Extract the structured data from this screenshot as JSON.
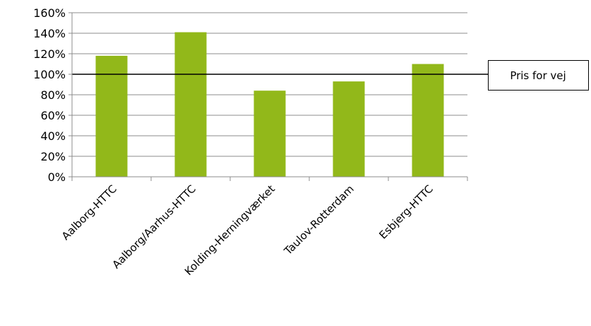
{
  "chart_data": {
    "type": "bar",
    "categories": [
      "Aalborg-HTTC",
      "Aalborg/Aarhus-HTTC",
      "Kolding-Herningværket",
      "Taulov-Rotterdam",
      "Esbjerg-HTTC"
    ],
    "series": [
      {
        "values": [
          118,
          141,
          84,
          93,
          110
        ],
        "color": "#92b81a"
      }
    ],
    "ylim": [
      0,
      160
    ],
    "yticks": [
      0,
      20,
      40,
      60,
      80,
      100,
      120,
      140,
      160
    ],
    "ytick_labels": [
      "0%",
      "20%",
      "40%",
      "60%",
      "80%",
      "100%",
      "120%",
      "140%",
      "160%"
    ],
    "y_unit": "%",
    "grid": true,
    "reference_line": {
      "value": 100,
      "label": "Pris for vej",
      "color": "#000000"
    },
    "title": "",
    "xlabel": "",
    "ylabel": ""
  },
  "colors": {
    "grid": "#8c8c8c",
    "axis": "#8c8c8c",
    "bar": "#92b81a"
  }
}
